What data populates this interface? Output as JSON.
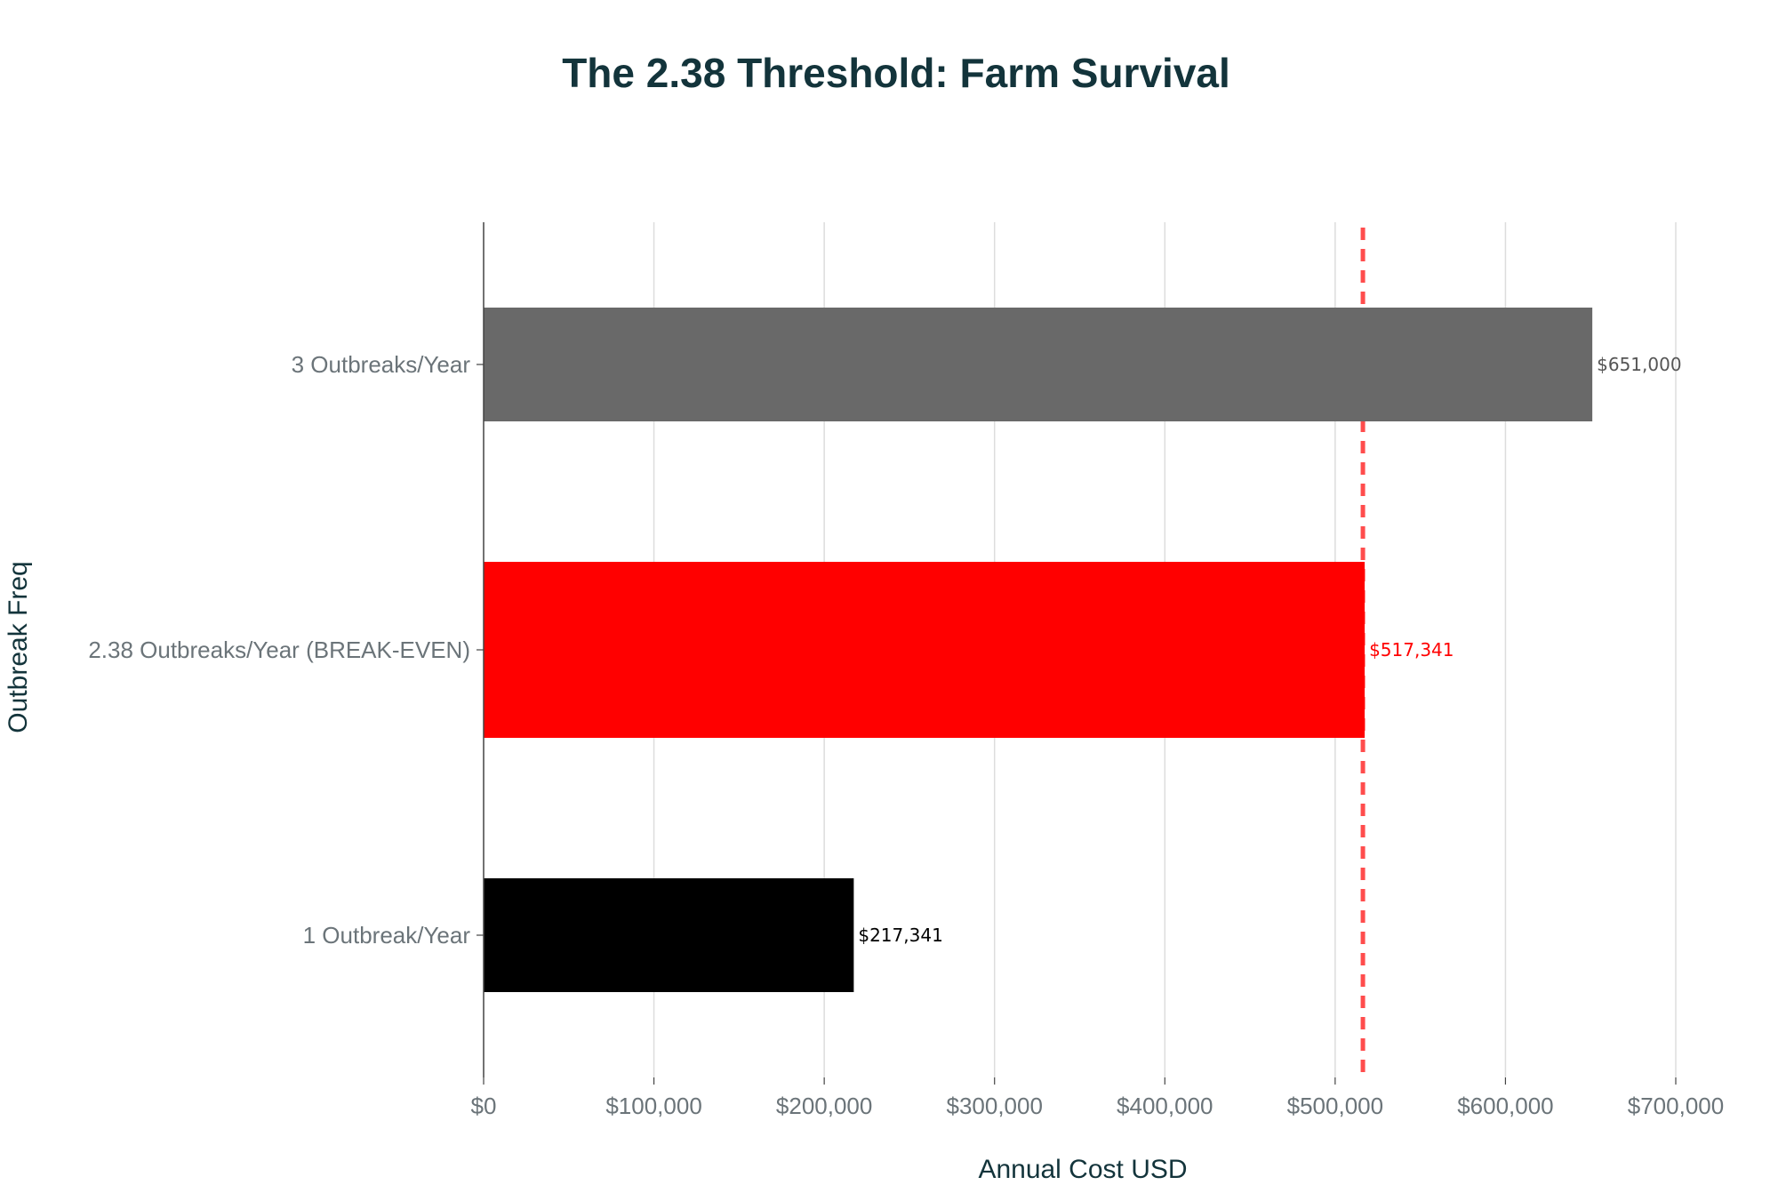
{
  "chart_data": {
    "type": "bar",
    "orientation": "horizontal",
    "title": "The 2.38 Threshold: Farm Survival",
    "xlabel": "Annual Cost USD",
    "ylabel": "Outbreak Freq",
    "categories": [
      "1 Outbreak/Year",
      "2.38 Outbreaks/Year (BREAK-EVEN)",
      "3 Outbreaks/Year"
    ],
    "values": [
      217341,
      517341,
      651000
    ],
    "value_labels": [
      "$217,341",
      "$517,341",
      "$651,000"
    ],
    "bar_colors": [
      "#000000",
      "#ff0000",
      "#696969"
    ],
    "value_label_colors": [
      "#000000",
      "#ff0000",
      "#555555"
    ],
    "xlim": [
      0,
      700000
    ],
    "x_ticks": [
      0,
      100000,
      200000,
      300000,
      400000,
      500000,
      600000,
      700000
    ],
    "x_tick_labels": [
      "$0",
      "$100,000",
      "$200,000",
      "$300,000",
      "$400,000",
      "$500,000",
      "$600,000",
      "$700,000"
    ],
    "reference_line": {
      "value": 517341,
      "style": "dashed",
      "color": "#ff4d4d"
    },
    "grid": true,
    "legend": false,
    "colors": {
      "title": "#13343b",
      "tick": "#6b7479",
      "grid": "#dddddd",
      "axis": "#444444"
    }
  }
}
